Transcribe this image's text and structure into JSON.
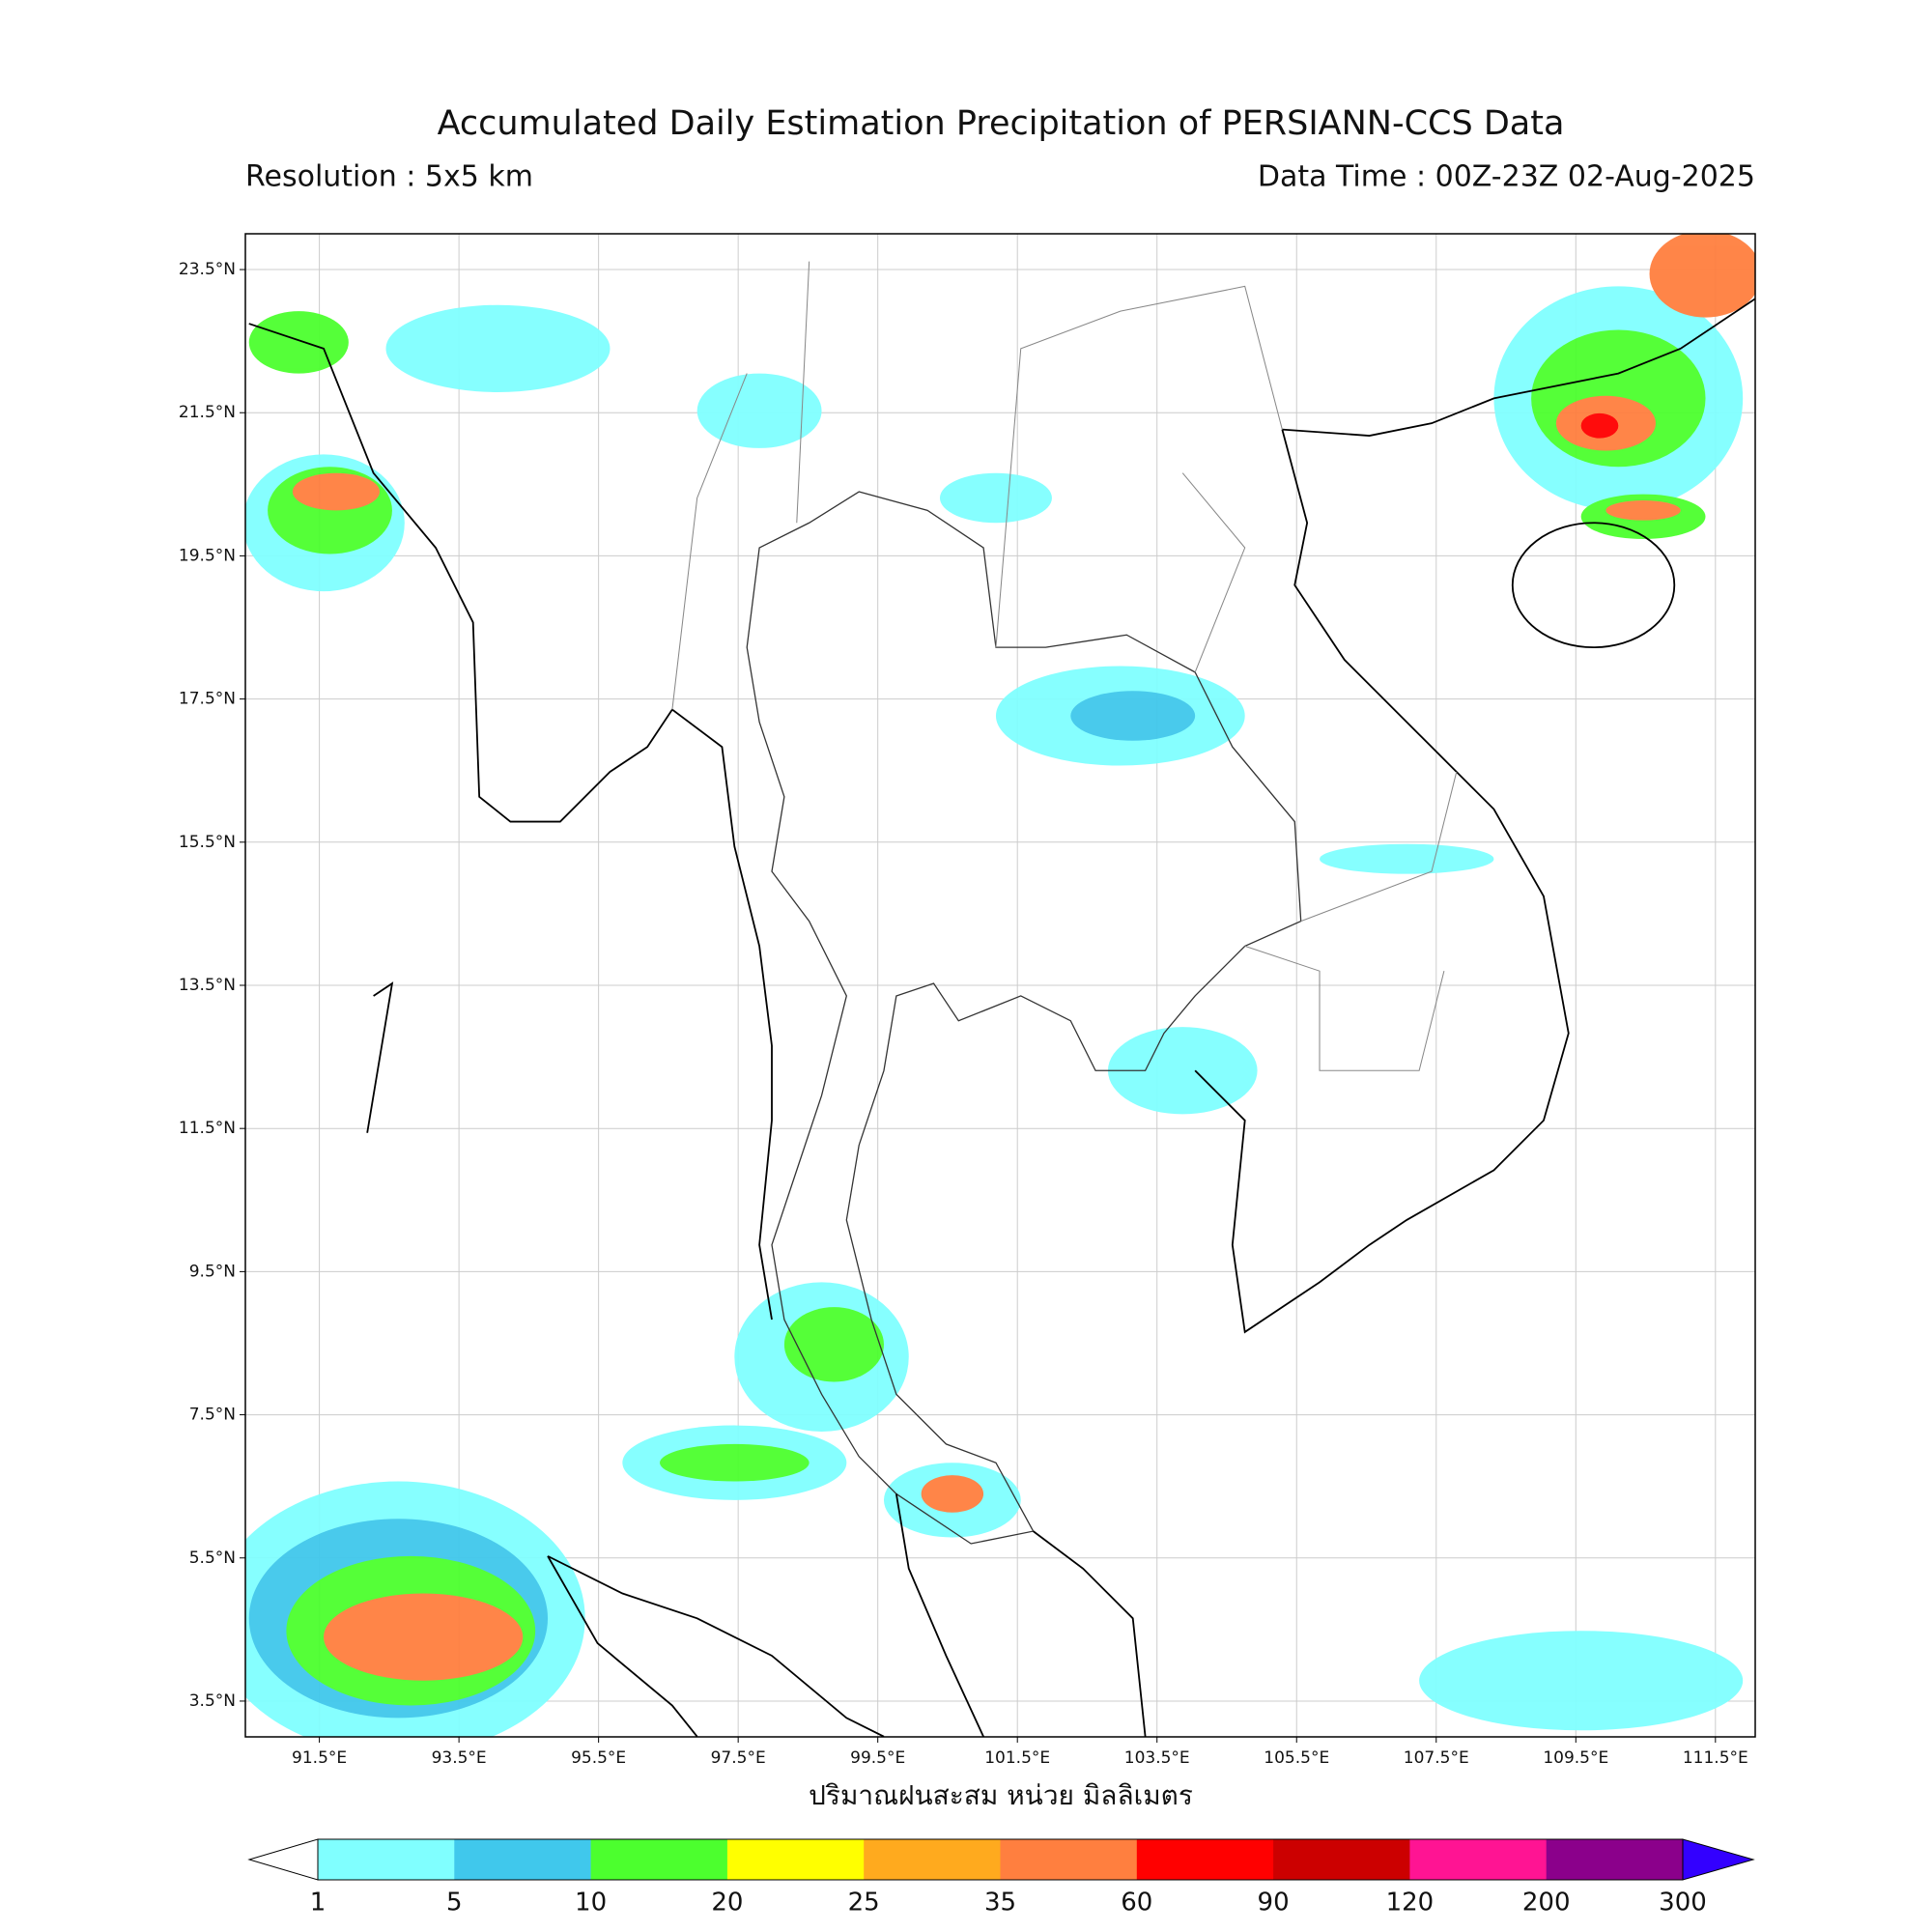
{
  "map": {
    "title": "Accumulated Daily Estimation Precipitation of PERSIANN-CCS Data",
    "resolution": "Resolution : 5x5 km",
    "data_time": "Data Time : 00Z-23Z 02-Aug-2025",
    "xlabel": "ปริมาณฝนสะสม หน่วย มิลลิเมตร",
    "xlim": [
      90.44,
      112.07
    ],
    "ylim": [
      3.0,
      24.0
    ],
    "grid": true,
    "lon_ticks": [
      {
        "value": 91.5,
        "label": "91.5°E"
      },
      {
        "value": 93.5,
        "label": "93.5°E"
      },
      {
        "value": 95.5,
        "label": "95.5°E"
      },
      {
        "value": 97.5,
        "label": "97.5°E"
      },
      {
        "value": 99.5,
        "label": "99.5°E"
      },
      {
        "value": 101.5,
        "label": "101.5°E"
      },
      {
        "value": 103.5,
        "label": "103.5°E"
      },
      {
        "value": 105.5,
        "label": "105.5°E"
      },
      {
        "value": 107.5,
        "label": "107.5°E"
      },
      {
        "value": 109.5,
        "label": "109.5°E"
      },
      {
        "value": 111.5,
        "label": "111.5°E"
      }
    ],
    "lat_ticks": [
      {
        "value": 23.5,
        "label": "23.5°N"
      },
      {
        "value": 21.5,
        "label": "21.5°N"
      },
      {
        "value": 19.5,
        "label": "19.5°N"
      },
      {
        "value": 17.5,
        "label": "17.5°N"
      },
      {
        "value": 15.5,
        "label": "15.5°N"
      },
      {
        "value": 13.5,
        "label": "13.5°N"
      },
      {
        "value": 11.5,
        "label": "11.5°N"
      },
      {
        "value": 9.5,
        "label": "9.5°N"
      },
      {
        "value": 7.5,
        "label": "7.5°N"
      },
      {
        "value": 5.5,
        "label": "5.5°N"
      },
      {
        "value": 3.5,
        "label": "3.5°N"
      }
    ]
  },
  "colorbar": {
    "boundaries": [
      1,
      5,
      10,
      20,
      25,
      35,
      60,
      90,
      120,
      200,
      300
    ],
    "colors": [
      "#80ffff",
      "#40c8ec",
      "#4cff2e",
      "#ffff00",
      "#ffaa1e",
      "#ff7f3f",
      "#ff0000",
      "#cc0000",
      "#ff1493",
      "#8b008b"
    ],
    "under_color": "#ffffff",
    "over_color": "#3300ff"
  }
}
